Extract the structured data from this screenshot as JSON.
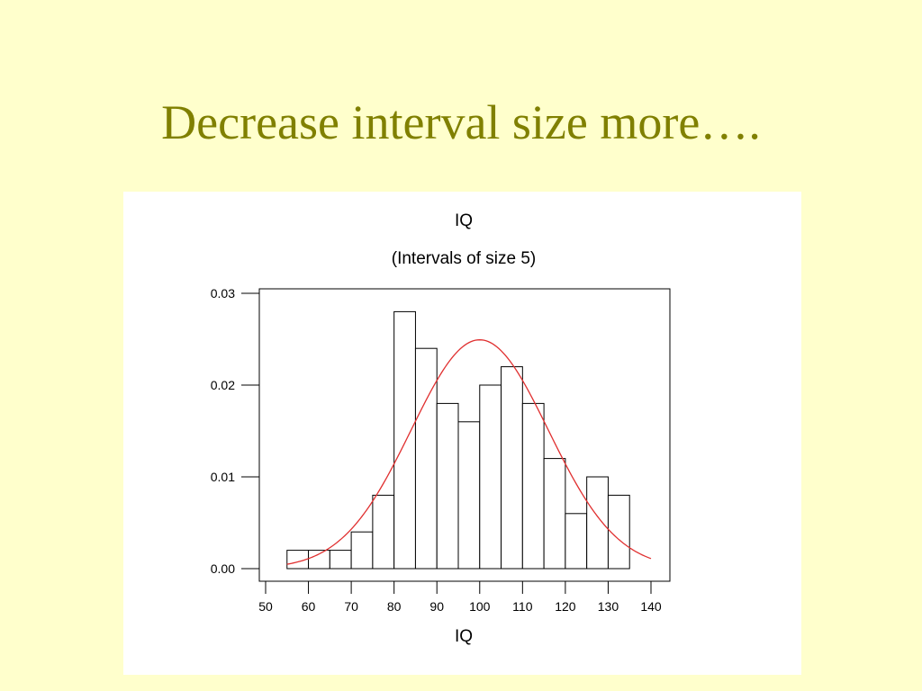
{
  "slide": {
    "title": "Decrease interval size more…."
  },
  "colors": {
    "background": "#FFFFCC",
    "title": "#808000",
    "curve": "#E03030",
    "bars": "#ffffff"
  },
  "chart_data": {
    "type": "bar",
    "title": "IQ",
    "subtitle": "(Intervals of size 5)",
    "xlabel": "IQ",
    "ylabel": "",
    "xlim": [
      50,
      140
    ],
    "ylim": [
      0,
      0.03
    ],
    "x_ticks": [
      "50",
      "60",
      "70",
      "80",
      "90",
      "100",
      "110",
      "120",
      "130",
      "140"
    ],
    "y_ticks": [
      "0.00",
      "0.01",
      "0.02",
      "0.03"
    ],
    "bin_width": 5,
    "bins": [
      {
        "start": 55,
        "value": 0.002
      },
      {
        "start": 60,
        "value": 0.002
      },
      {
        "start": 65,
        "value": 0.002
      },
      {
        "start": 70,
        "value": 0.004
      },
      {
        "start": 75,
        "value": 0.008
      },
      {
        "start": 80,
        "value": 0.028
      },
      {
        "start": 85,
        "value": 0.024
      },
      {
        "start": 90,
        "value": 0.018
      },
      {
        "start": 95,
        "value": 0.016
      },
      {
        "start": 100,
        "value": 0.02
      },
      {
        "start": 105,
        "value": 0.022
      },
      {
        "start": 110,
        "value": 0.018
      },
      {
        "start": 115,
        "value": 0.012
      },
      {
        "start": 120,
        "value": 0.006
      },
      {
        "start": 125,
        "value": 0.01
      },
      {
        "start": 130,
        "value": 0.008
      }
    ],
    "normal_curve": {
      "mean": 100,
      "sd": 16,
      "x_range": [
        55,
        140
      ]
    },
    "grid": false,
    "legend": "none"
  }
}
